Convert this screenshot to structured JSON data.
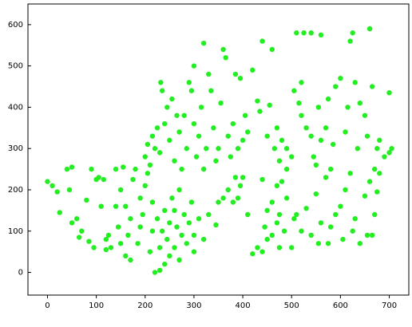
{
  "chart_data": {
    "type": "scatter",
    "color": "#22ee22",
    "xlim": [
      -40,
      740
    ],
    "ylim": [
      -55,
      650
    ],
    "xticks": [
      0,
      100,
      200,
      300,
      400,
      500,
      600,
      700
    ],
    "yticks": [
      0,
      100,
      200,
      300,
      400,
      500,
      600
    ],
    "x": [
      0,
      10,
      20,
      25,
      40,
      50,
      45,
      50,
      60,
      70,
      65,
      80,
      85,
      90,
      95,
      100,
      105,
      110,
      115,
      120,
      125,
      120,
      130,
      140,
      140,
      150,
      145,
      150,
      155,
      160,
      165,
      160,
      170,
      175,
      170,
      180,
      185,
      190,
      190,
      195,
      200,
      205,
      210,
      215,
      215,
      220,
      225,
      230,
      230,
      235,
      240,
      240,
      245,
      250,
      250,
      255,
      260,
      260,
      265,
      270,
      270,
      275,
      280,
      285,
      290,
      295,
      300,
      300,
      310,
      320,
      330,
      345,
      350,
      360,
      370,
      380,
      385,
      395,
      400,
      390,
      410,
      420,
      430,
      440,
      445,
      450,
      460,
      470,
      475,
      485,
      500,
      505,
      200,
      205,
      210,
      215,
      220,
      225,
      230,
      232,
      235,
      240,
      245,
      250,
      255,
      260,
      265,
      270,
      275,
      280,
      285,
      290,
      295,
      300,
      300,
      305,
      310,
      315,
      320,
      320,
      325,
      330,
      335,
      340,
      345,
      350,
      355,
      360,
      365,
      370,
      375,
      380,
      385,
      390,
      395,
      400,
      405,
      410,
      420,
      430,
      435,
      440,
      450,
      455,
      460,
      465,
      470,
      475,
      480,
      490,
      500,
      505,
      510,
      520,
      525,
      540,
      560,
      515,
      520,
      530,
      540,
      545,
      550,
      555,
      560,
      570,
      575,
      580,
      585,
      590,
      600,
      610,
      615,
      620,
      625,
      630,
      635,
      640,
      650,
      655,
      660,
      665,
      670,
      675,
      680,
      690,
      700,
      705,
      700,
      510,
      520,
      530,
      540,
      550,
      555,
      560,
      570,
      575,
      580,
      590,
      600,
      605,
      610,
      620,
      625,
      630,
      640,
      650,
      655,
      660,
      665,
      670,
      675,
      680,
      490,
      480,
      470,
      440,
      450,
      460,
      475,
      490
    ],
    "values": [
      220,
      210,
      195,
      145,
      250,
      255,
      200,
      120,
      130,
      100,
      85,
      175,
      75,
      250,
      60,
      225,
      230,
      160,
      225,
      80,
      90,
      55,
      60,
      160,
      250,
      200,
      110,
      70,
      255,
      40,
      90,
      160,
      130,
      225,
      30,
      250,
      70,
      180,
      110,
      140,
      210,
      240,
      50,
      100,
      170,
      0,
      130,
      5,
      60,
      100,
      20,
      150,
      80,
      120,
      40,
      180,
      60,
      150,
      110,
      30,
      200,
      90,
      140,
      70,
      120,
      170,
      50,
      90,
      130,
      80,
      140,
      115,
      170,
      180,
      200,
      170,
      230,
      210,
      230,
      180,
      140,
      45,
      60,
      50,
      110,
      80,
      90,
      120,
      60,
      100,
      60,
      130,
      280,
      310,
      260,
      330,
      300,
      350,
      290,
      460,
      440,
      360,
      400,
      320,
      420,
      270,
      380,
      340,
      250,
      380,
      300,
      460,
      440,
      500,
      360,
      280,
      330,
      400,
      555,
      250,
      300,
      480,
      440,
      350,
      270,
      300,
      410,
      540,
      520,
      330,
      280,
      360,
      480,
      300,
      470,
      320,
      380,
      340,
      490,
      415,
      390,
      560,
      330,
      405,
      540,
      300,
      350,
      270,
      320,
      300,
      280,
      440,
      580,
      460,
      580,
      580,
      575,
      410,
      380,
      350,
      330,
      280,
      260,
      400,
      320,
      350,
      420,
      250,
      310,
      450,
      470,
      340,
      400,
      560,
      580,
      460,
      300,
      410,
      380,
      330,
      590,
      450,
      250,
      300,
      320,
      280,
      290,
      300,
      435,
      140,
      100,
      155,
      90,
      190,
      70,
      120,
      230,
      70,
      110,
      140,
      160,
      80,
      200,
      240,
      100,
      130,
      70,
      185,
      90,
      220,
      90,
      140,
      195,
      240,
      250,
      220,
      210,
      225,
      150,
      170,
      140,
      180
    ]
  }
}
